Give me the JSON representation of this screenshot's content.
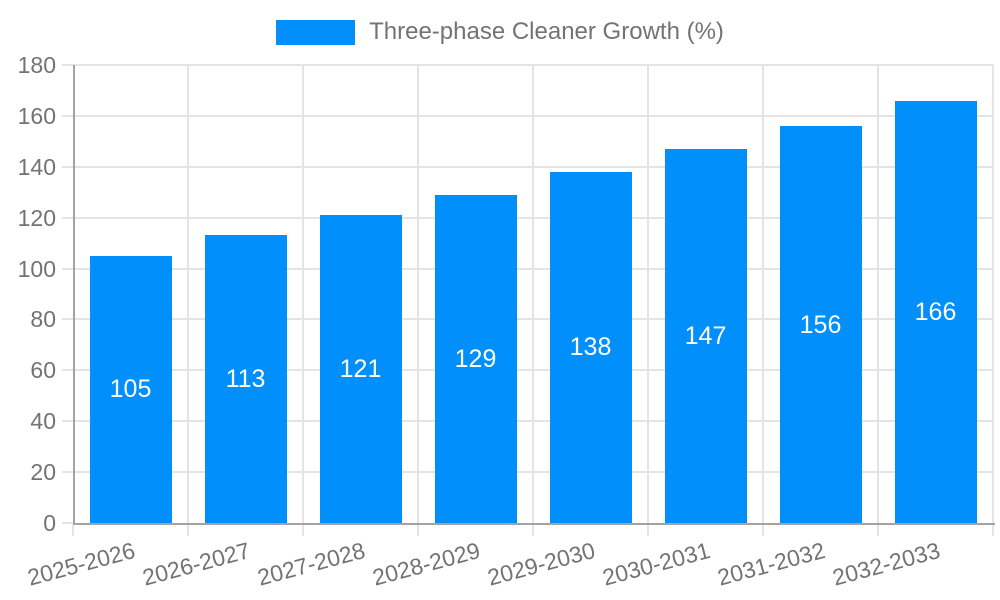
{
  "colors": {
    "bar": "#008FFB",
    "grid": "#e4e4e4",
    "axis": "#a3a3a3",
    "label_text": "#737373",
    "value_label_text": "#ffffff",
    "background": "#ffffff"
  },
  "legend": {
    "label": "Three-phase Cleaner Growth (%)"
  },
  "chart_data": {
    "type": "bar",
    "title": "Three-phase Cleaner Growth (%)",
    "categories": [
      "2025-2026",
      "2026-2027",
      "2027-2028",
      "2028-2029",
      "2029-2030",
      "2030-2031",
      "2031-2032",
      "2032-2033"
    ],
    "series": [
      {
        "name": "Three-phase Cleaner Growth (%)",
        "values": [
          105,
          113,
          121,
          129,
          138,
          147,
          156,
          166
        ]
      }
    ],
    "values": [
      105,
      113,
      121,
      129,
      138,
      147,
      156,
      166
    ],
    "value_labels": [
      "105",
      "113",
      "121",
      "129",
      "138",
      "147",
      "156",
      "166"
    ],
    "value_label_position": "inside-center",
    "xlabel": "",
    "ylabel": "",
    "ylim": [
      0,
      180
    ],
    "yticks": [
      0,
      20,
      40,
      60,
      80,
      100,
      120,
      140,
      160,
      180
    ],
    "ytick_labels": [
      "0",
      "20",
      "40",
      "60",
      "80",
      "100",
      "120",
      "140",
      "160",
      "180"
    ],
    "grid": true,
    "legend_position": "top",
    "x_label_rotation_deg": -15
  }
}
